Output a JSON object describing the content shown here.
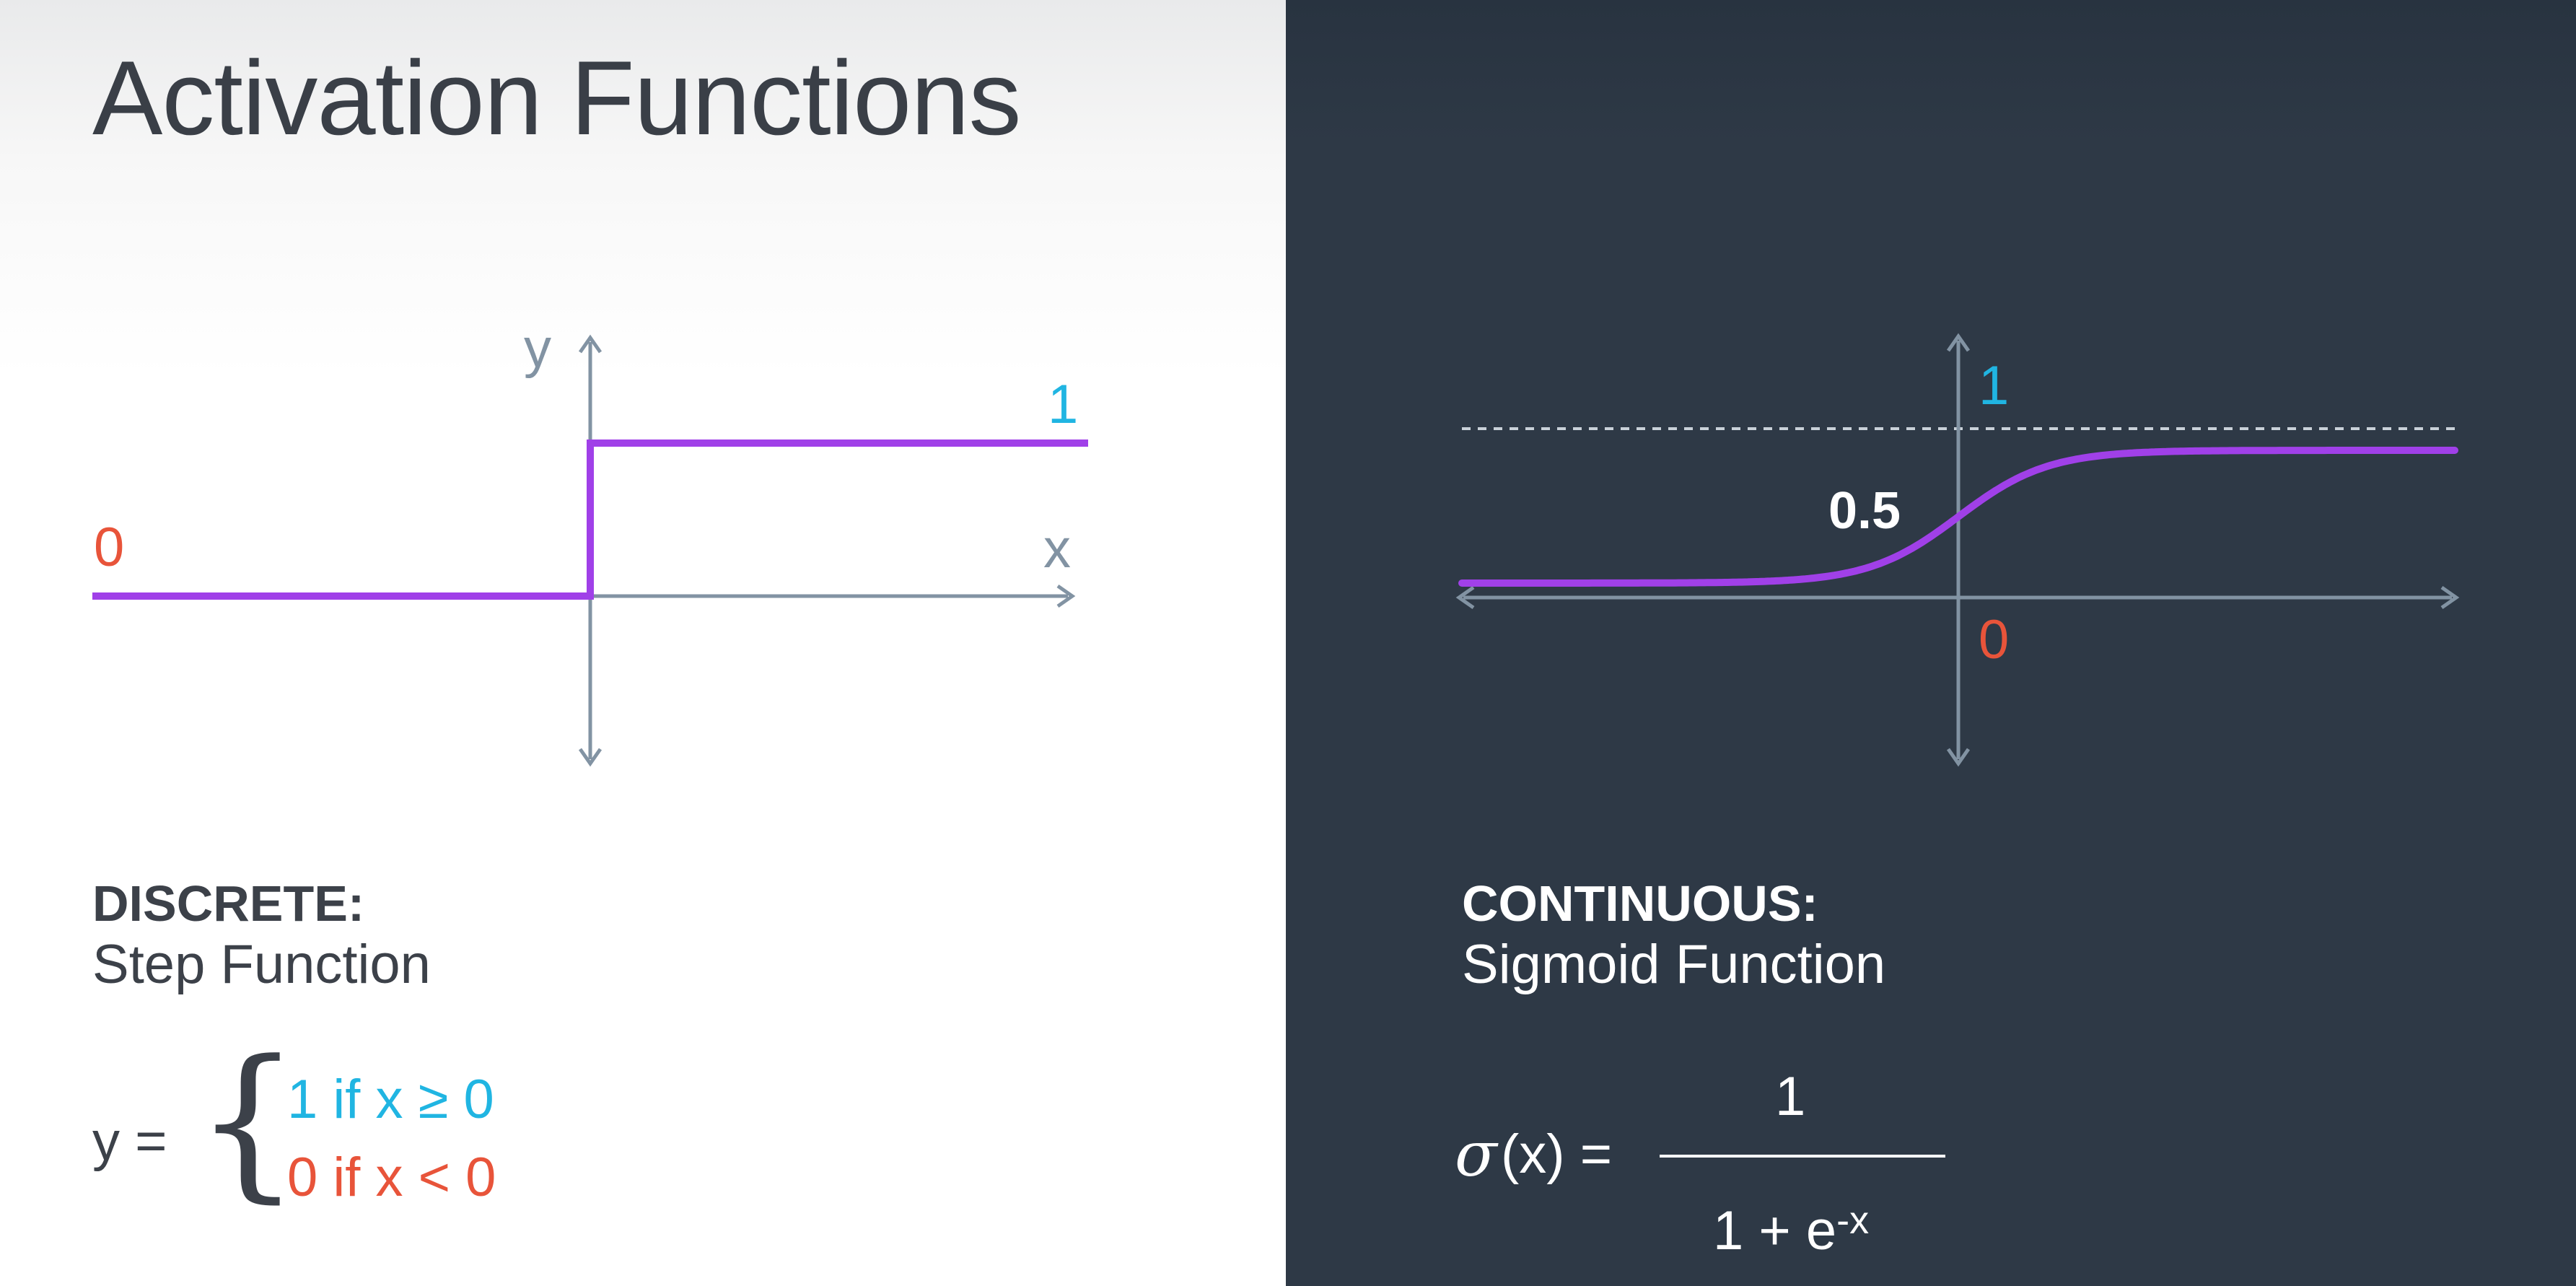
{
  "title": "Activation Functions",
  "step": {
    "axis_x_label": "x",
    "axis_y_label": "y",
    "low_label": "0",
    "high_label": "1",
    "caption_head": "DISCRETE:",
    "caption_sub": "Step Function",
    "formula_lhs": "y =",
    "formula_brace": "{",
    "case_high": "1 if x  ≥ 0",
    "case_low": "0 if x < 0"
  },
  "sigmoid": {
    "top_label": "1",
    "mid_label": "0.5",
    "zero_label": "0",
    "caption_head": "CONTINUOUS:",
    "caption_sub": "Sigmoid Function",
    "formula_sigma": "σ",
    "formula_lhs_rest": "(x) =",
    "formula_numerator": "1",
    "formula_denominator_base": "1 + e",
    "formula_denominator_exp": "-x"
  },
  "colors": {
    "left_bg": "#ffffff",
    "right_bg": "#2e3946",
    "axis": "#8293a3",
    "curve": "#a040e8",
    "label_one": "#20b5e2",
    "label_zero": "#e8543a",
    "dashed_line": "#c9d1d9"
  }
}
